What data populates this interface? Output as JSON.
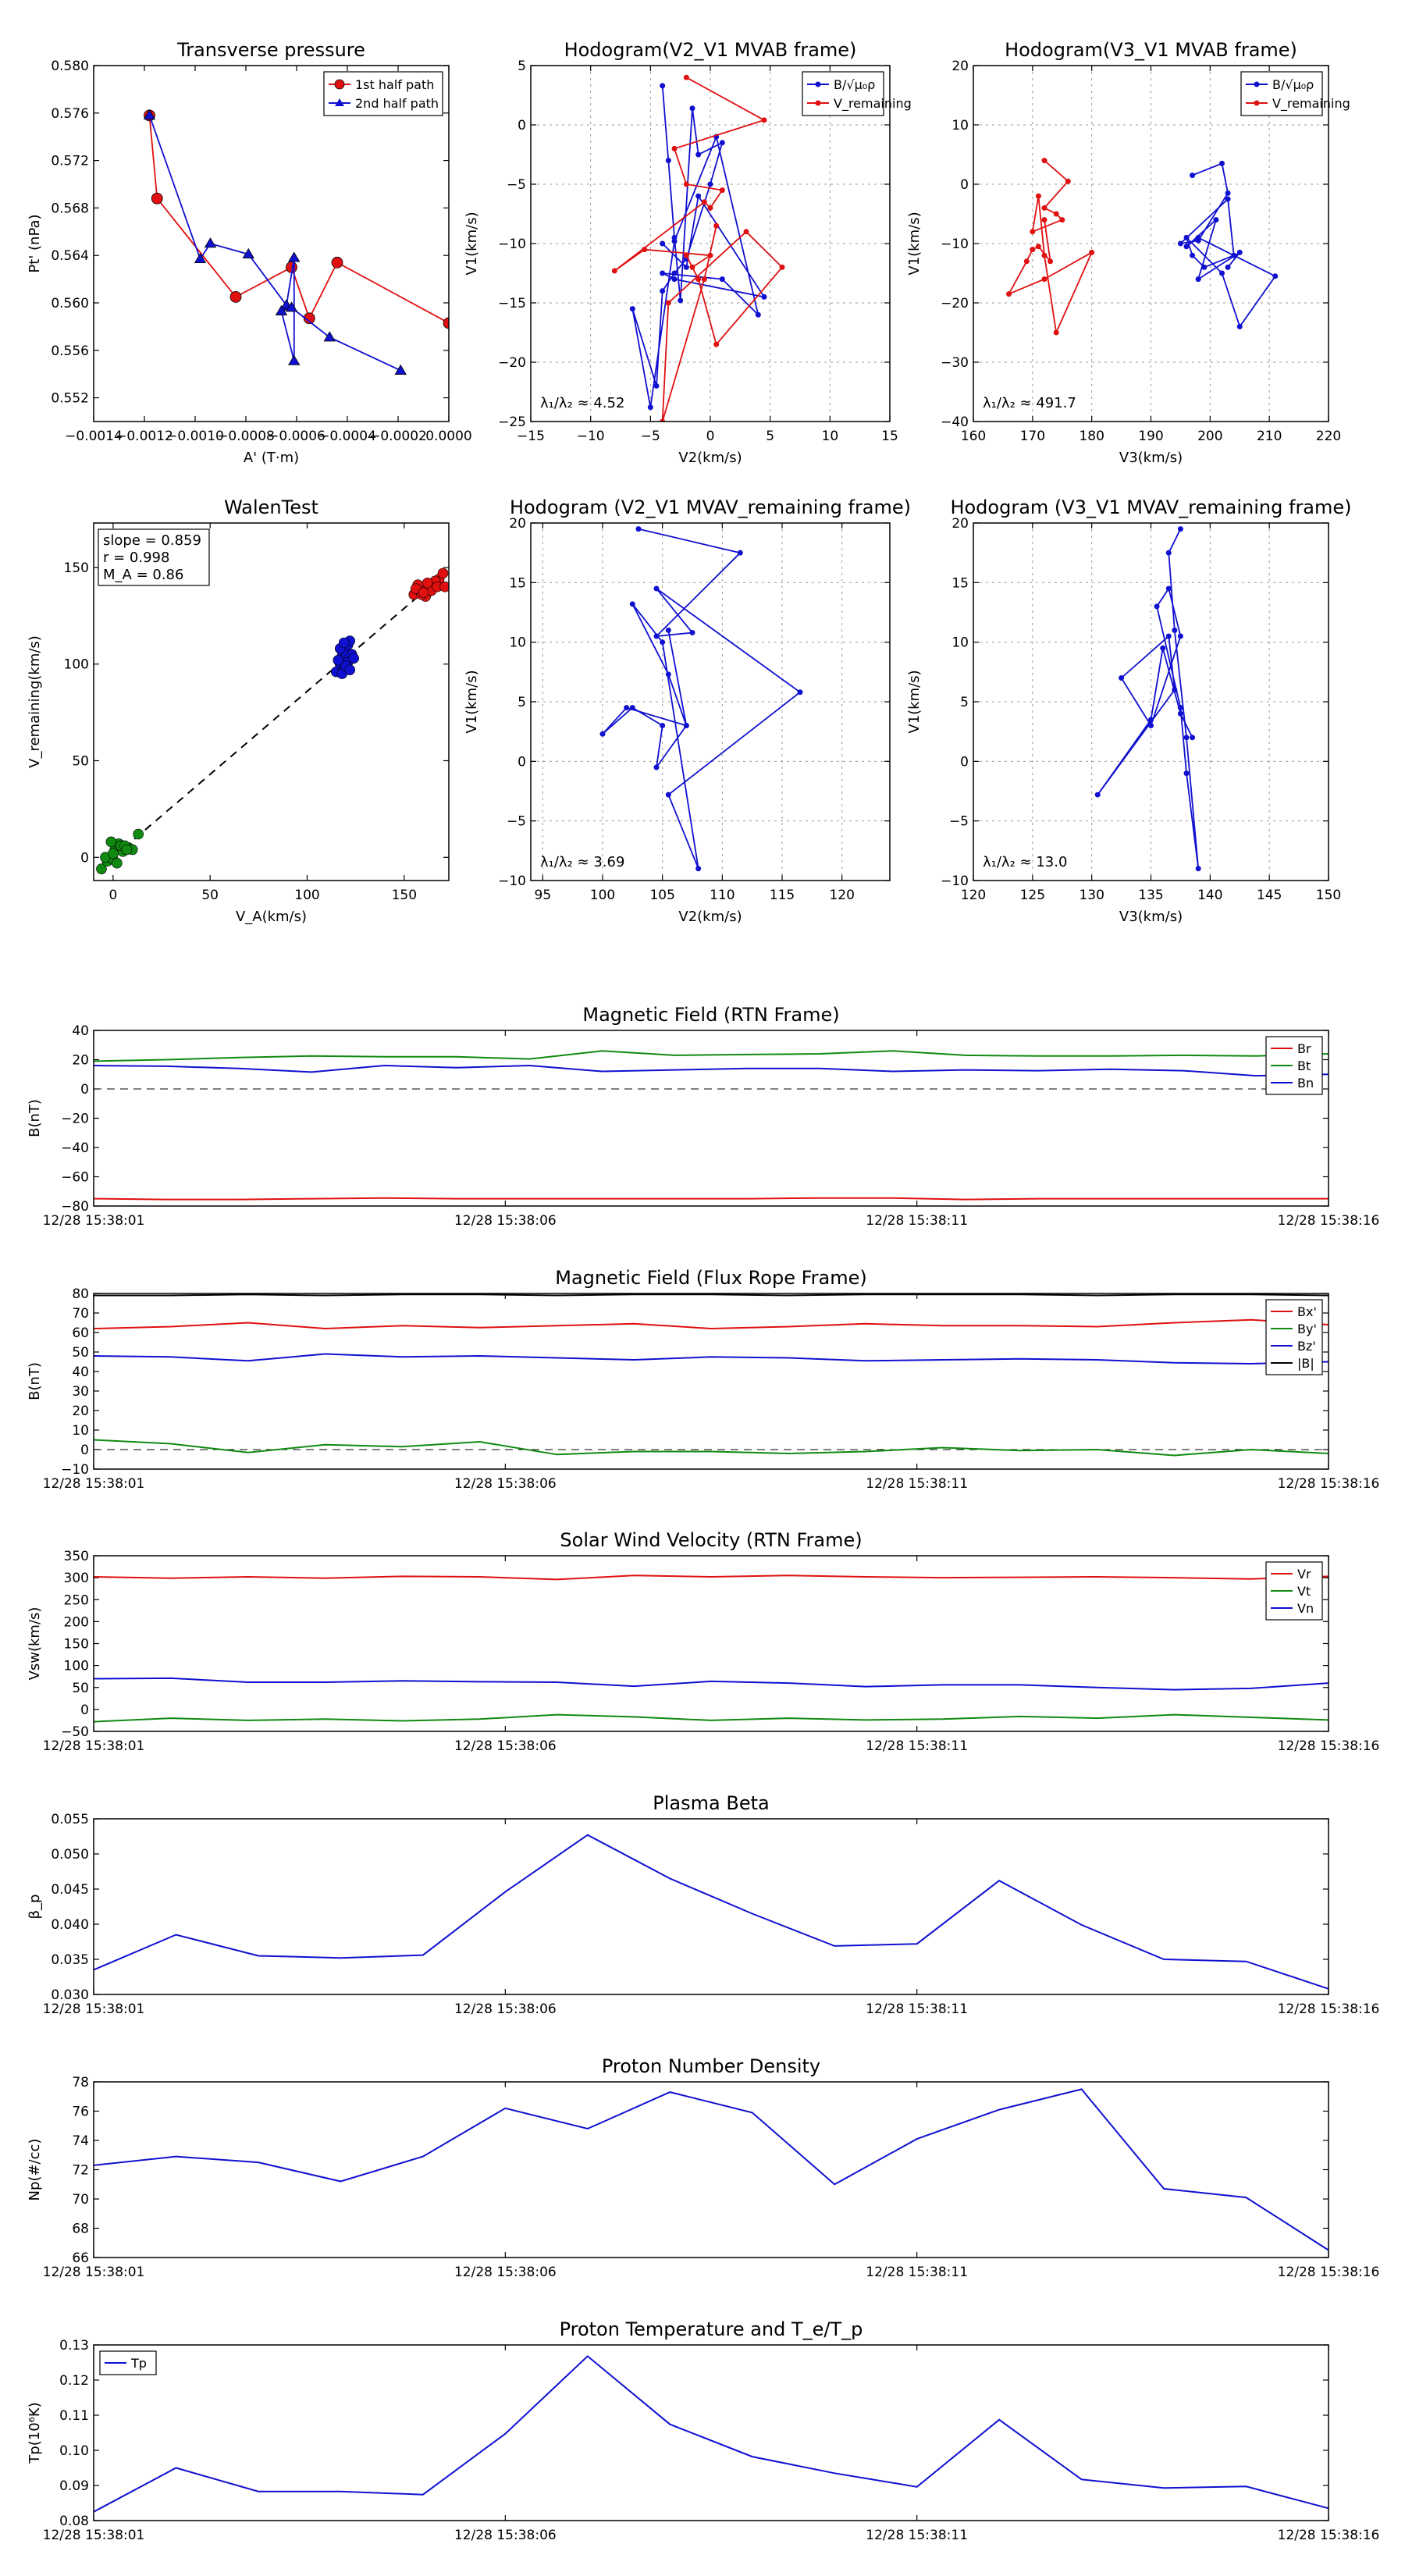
{
  "colors": {
    "red": "#e01010",
    "green": "#108a10",
    "blue": "#1010d0",
    "black": "#000000"
  },
  "time_ticks": [
    "12/28 15:38:01",
    "12/28 15:38:06",
    "12/28 15:38:11",
    "12/28 15:38:16"
  ],
  "chart_data": [
    {
      "id": "transverse",
      "type": "line",
      "title": "Transverse pressure",
      "xlabel": "A' (T·m)",
      "ylabel": "Pt' (nPa)",
      "xlim": [
        -0.0014,
        0.0
      ],
      "ylim": [
        0.55,
        0.58
      ],
      "xticks": [
        -0.0014,
        -0.0012,
        -0.001,
        -0.0008,
        -0.0006,
        -0.0004,
        -0.0002,
        0.0
      ],
      "xtick_labels": [
        "−0.0014",
        "−0.0012",
        "−0.0010",
        "−0.0008",
        "−0.0006",
        "−0.0004",
        "−0.0002",
        "0.0000"
      ],
      "yticks": [
        0.552,
        0.556,
        0.56,
        0.564,
        0.568,
        0.572,
        0.576,
        0.58
      ],
      "ytick_labels": [
        "0.552",
        "0.556",
        "0.560",
        "0.564",
        "0.568",
        "0.572",
        "0.576",
        "0.580"
      ],
      "legend": "top-right",
      "series": [
        {
          "name": "1st half path",
          "color": "red",
          "marker": "circle",
          "x": [
            -0.00118,
            -0.00115,
            -0.00084,
            -0.00062,
            -0.00055,
            -0.00044,
            0.0
          ],
          "y": [
            0.5758,
            0.5688,
            0.5605,
            0.563,
            0.5587,
            0.5634,
            0.5583
          ]
        },
        {
          "name": "2nd half path",
          "color": "blue",
          "marker": "triangle",
          "x": [
            -0.00118,
            -0.00098,
            -0.00094,
            -0.00079,
            -0.00064,
            -0.00061,
            -0.00061,
            -0.00066,
            -0.00062,
            -0.00047,
            -0.00019
          ],
          "y": [
            0.5758,
            0.5637,
            0.565,
            0.5641,
            0.5598,
            0.5638,
            0.5551,
            0.5593,
            0.5596,
            0.5571,
            0.5543
          ]
        }
      ]
    },
    {
      "id": "hodo_v2_mvab",
      "type": "line",
      "title": "Hodogram(V2_V1 MVAB frame)",
      "xlabel": "V2(km/s)",
      "ylabel": "V1(km/s)",
      "xlim": [
        -15,
        15
      ],
      "ylim": [
        -25,
        5
      ],
      "xticks": [
        -15,
        -10,
        -5,
        0,
        5,
        10,
        15
      ],
      "yticks": [
        -25,
        -20,
        -15,
        -10,
        -5,
        0,
        5
      ],
      "grid": true,
      "legend": "top-right",
      "annotation": "λ₁/λ₂ ≈ 4.52",
      "series": [
        {
          "name": "B/√μ₀ρ",
          "color": "blue",
          "x": [
            -4,
            -3.5,
            -3,
            -2.5,
            -1.5,
            -1,
            1,
            0,
            -2,
            -3,
            -4,
            -4.5,
            -6.5,
            -5,
            -3,
            0.5,
            4,
            1,
            -4,
            -3,
            4.5,
            -1,
            -2,
            -4
          ],
          "y": [
            3.3,
            -3,
            -9.5,
            -14.8,
            1.4,
            -2.5,
            -1.5,
            -5,
            -11.3,
            -12.5,
            -14,
            -22,
            -15.5,
            -23.8,
            -9.8,
            -1,
            -16,
            -13,
            -12.5,
            -13,
            -14.5,
            -6,
            -12,
            -10
          ]
        },
        {
          "name": "V_remaining",
          "color": "red",
          "x": [
            -2,
            4.5,
            -3,
            -2,
            1,
            0,
            -0.5,
            -8,
            -5.5,
            0,
            -1.5,
            -2,
            -1,
            0.5,
            6,
            3,
            -3.5,
            -4,
            -0.5,
            0.5
          ],
          "y": [
            4,
            0.4,
            -2,
            -5,
            -5.5,
            -7,
            -6.5,
            -12.3,
            -10.5,
            -11,
            -12,
            -11,
            -13,
            -18.5,
            -12,
            -9,
            -15,
            -25,
            -13,
            -8.5
          ]
        }
      ]
    },
    {
      "id": "hodo_v3_mvab",
      "type": "line",
      "title": "Hodogram(V3_V1 MVAB frame)",
      "xlabel": "V3(km/s)",
      "ylabel": "V1(km/s)",
      "xlim": [
        160,
        220
      ],
      "ylim": [
        -40,
        20
      ],
      "xticks": [
        160,
        170,
        180,
        190,
        200,
        210,
        220
      ],
      "yticks": [
        -40,
        -30,
        -20,
        -10,
        0,
        10,
        20
      ],
      "grid": true,
      "legend": "top-right",
      "annotation": "λ₁/λ₂ ≈ 491.7",
      "series": [
        {
          "name": "B/√μ₀ρ",
          "color": "blue",
          "x": [
            197,
            202,
            203,
            198,
            195,
            203,
            204,
            199,
            197,
            196,
            202,
            205,
            211,
            198,
            196,
            201,
            198,
            205,
            203
          ],
          "y": [
            1.5,
            3.5,
            -1.5,
            -9.5,
            -10,
            -2.5,
            -12,
            -14,
            -12,
            -9,
            -15,
            -24,
            -15.5,
            -9,
            -10.5,
            -6,
            -16,
            -11.5,
            -14
          ]
        },
        {
          "name": "V_remaining",
          "color": "red",
          "x": [
            172,
            176,
            172,
            174,
            175,
            170,
            171,
            172,
            174,
            180,
            172,
            166,
            169,
            170,
            171,
            173,
            172
          ],
          "y": [
            4,
            0.5,
            -4,
            -5,
            -6,
            -8,
            -2,
            -12,
            -25,
            -11.5,
            -16,
            -18.5,
            -13,
            -11,
            -10.5,
            -13,
            -6
          ]
        }
      ]
    },
    {
      "id": "walen",
      "type": "scatter",
      "title": "WalenTest",
      "xlabel": "V_A(km/s)",
      "ylabel": "V_remaining(km/s)",
      "xlim": [
        -10,
        173
      ],
      "ylim": [
        -12,
        173
      ],
      "xticks": [
        0,
        50,
        100,
        150
      ],
      "yticks": [
        0,
        50,
        100,
        150
      ],
      "annotation_lines": [
        "slope = 0.859",
        "r = 0.998",
        "M_A = 0.86"
      ],
      "fit": {
        "slope": 0.859,
        "x": [
          0,
          170
        ]
      },
      "series": [
        {
          "name": "green",
          "color": "green",
          "x": [
            -6,
            -3,
            0,
            1,
            3,
            -1,
            5,
            8,
            10,
            13,
            2,
            4,
            6,
            -4,
            0,
            7
          ],
          "y": [
            -6,
            -2,
            -1,
            4,
            7,
            8,
            3,
            5,
            4,
            12,
            -3,
            6,
            6,
            0,
            2,
            4
          ]
        },
        {
          "name": "blue",
          "color": "blue",
          "x": [
            115,
            117,
            118,
            120,
            121,
            122,
            119,
            116,
            118,
            121,
            123,
            120,
            124,
            117,
            119,
            122
          ],
          "y": [
            96,
            100,
            104,
            106,
            110,
            112,
            97,
            102,
            95,
            101,
            105,
            99,
            103,
            108,
            111,
            97
          ]
        },
        {
          "name": "red",
          "color": "red",
          "x": [
            155,
            158,
            160,
            162,
            163,
            165,
            168,
            170,
            157,
            161,
            164,
            159,
            166,
            156,
            162,
            167,
            171,
            160
          ],
          "y": [
            136,
            138,
            140,
            137,
            139,
            142,
            144,
            147,
            141,
            135,
            138,
            136,
            143,
            139,
            142,
            140,
            140,
            137
          ]
        }
      ]
    },
    {
      "id": "hodo_v2_mvav",
      "type": "line",
      "title": "Hodogram (V2_V1 MVAV_remaining frame)",
      "xlabel": "V2(km/s)",
      "ylabel": "V1(km/s)",
      "xlim": [
        94,
        124
      ],
      "ylim": [
        -10,
        20
      ],
      "xticks": [
        95,
        100,
        105,
        110,
        115,
        120
      ],
      "yticks": [
        -10,
        -5,
        0,
        5,
        10,
        15,
        20
      ],
      "grid": true,
      "annotation": "λ₁/λ₂ ≈ 3.69",
      "series": [
        {
          "name": "V",
          "color": "blue",
          "x": [
            103,
            111.5,
            104.5,
            107.5,
            104.5,
            116.5,
            105.5,
            108,
            105,
            102.5,
            105.5,
            107,
            102,
            100,
            102.5,
            105,
            104.5,
            107,
            105.5
          ],
          "y": [
            19.5,
            17.5,
            10.5,
            10.8,
            14.5,
            5.8,
            -2.8,
            -9,
            10,
            13.2,
            7.3,
            3,
            4.5,
            2.3,
            4.5,
            3,
            -0.5,
            3,
            11
          ]
        }
      ]
    },
    {
      "id": "hodo_v3_mvav",
      "type": "line",
      "title": "Hodogram (V3_V1 MVAV_remaining frame)",
      "xlabel": "V3(km/s)",
      "ylabel": "V1(km/s)",
      "xlim": [
        120,
        150
      ],
      "ylim": [
        -10,
        20
      ],
      "xticks": [
        120,
        125,
        130,
        135,
        140,
        145,
        150
      ],
      "yticks": [
        -10,
        -5,
        0,
        5,
        10,
        15,
        20
      ],
      "grid": true,
      "annotation": "λ₁/λ₂ ≈ 13.0",
      "series": [
        {
          "name": "V",
          "color": "blue",
          "x": [
            137.5,
            136.5,
            137,
            138,
            139,
            138,
            137.5,
            135.5,
            136.5,
            137.5,
            135,
            132.5,
            136.5,
            137,
            130.5,
            135,
            136,
            137.5,
            138.5
          ],
          "y": [
            19.5,
            17.5,
            11,
            2,
            -9,
            -1,
            4.5,
            13,
            14.5,
            10.5,
            3,
            7,
            10.5,
            6,
            -2.8,
            3.5,
            9.5,
            4,
            2
          ]
        }
      ]
    },
    {
      "id": "bfield_rtn",
      "type": "line",
      "title": "Magnetic Field (RTN Frame)",
      "ylabel": "B(nT)",
      "ylim": [
        -80,
        40
      ],
      "yticks": [
        -80,
        -60,
        -40,
        -20,
        0,
        20,
        40
      ],
      "zero_line": true,
      "legend": "top-right",
      "series": [
        {
          "name": "Br",
          "color": "red",
          "values": [
            -75,
            -75.5,
            -75.5,
            -75,
            -74.5,
            -75,
            -75,
            -75,
            -75,
            -75,
            -74.5,
            -74.5,
            -75.5,
            -75,
            -75,
            -75,
            -75,
            -75
          ]
        },
        {
          "name": "Bt",
          "color": "green",
          "values": [
            19,
            20,
            21.5,
            22.5,
            22,
            22,
            20.5,
            26,
            23,
            23.5,
            24,
            26,
            23,
            22.5,
            22.5,
            23,
            22.5,
            24
          ]
        },
        {
          "name": "Bn",
          "color": "blue",
          "values": [
            16,
            15.5,
            14,
            11.5,
            16,
            14.5,
            16,
            12,
            13,
            14,
            14,
            12,
            13,
            12.5,
            13.5,
            12.5,
            9,
            10
          ]
        }
      ]
    },
    {
      "id": "bfield_fr",
      "type": "line",
      "title": "Magnetic Field (Flux Rope Frame)",
      "ylabel": "B(nT)",
      "ylim": [
        -10,
        80
      ],
      "yticks": [
        -10,
        0,
        10,
        20,
        30,
        40,
        50,
        60,
        70,
        80
      ],
      "zero_line": true,
      "legend": "top-right",
      "series": [
        {
          "name": "Bx'",
          "color": "red",
          "values": [
            62,
            63,
            65,
            62,
            63.5,
            62.5,
            63.5,
            64.5,
            62,
            63,
            64.5,
            63.5,
            63.5,
            63,
            65,
            66.5,
            64
          ]
        },
        {
          "name": "By'",
          "color": "green",
          "values": [
            5,
            3,
            -1.5,
            2.5,
            1.5,
            4,
            -2.5,
            -1,
            -1,
            -2,
            -1,
            1,
            -0.5,
            0,
            -3,
            0,
            -2
          ]
        },
        {
          "name": "Bz'",
          "color": "blue",
          "values": [
            48,
            47.5,
            45.5,
            49,
            47.5,
            48,
            47,
            46,
            47.5,
            47,
            45.5,
            46,
            46.5,
            46,
            44.5,
            44,
            45
          ]
        },
        {
          "name": "|B|",
          "color": "black",
          "values": [
            79,
            79,
            79.5,
            79,
            79.5,
            79.5,
            79,
            79.5,
            79.5,
            79,
            79.5,
            79.5,
            79.5,
            79,
            79.5,
            79.5,
            79
          ]
        }
      ]
    },
    {
      "id": "swv",
      "type": "line",
      "title": "Solar Wind Velocity (RTN Frame)",
      "ylabel": "Vsw(km/s)",
      "ylim": [
        -50,
        350
      ],
      "yticks": [
        -50,
        0,
        50,
        100,
        150,
        200,
        250,
        300,
        350
      ],
      "legend": "top-right",
      "series": [
        {
          "name": "Vr",
          "color": "red",
          "values": [
            302,
            299,
            302,
            299,
            303,
            302,
            296,
            305,
            302,
            305,
            302,
            300,
            301,
            302,
            300,
            297,
            303
          ]
        },
        {
          "name": "Vt",
          "color": "green",
          "values": [
            -28,
            -20,
            -25,
            -22,
            -26,
            -22,
            -12,
            -17,
            -25,
            -20,
            -24,
            -22,
            -16,
            -20,
            -12,
            -18,
            -24
          ]
        },
        {
          "name": "Vn",
          "color": "blue",
          "values": [
            70,
            71,
            62,
            62,
            65,
            63,
            62,
            53,
            64,
            60,
            52,
            56,
            56,
            50,
            45,
            48,
            60
          ]
        }
      ]
    },
    {
      "id": "beta",
      "type": "line",
      "title": "Plasma Beta",
      "ylabel": "β_p",
      "ylim": [
        0.03,
        0.055
      ],
      "yticks": [
        0.03,
        0.035,
        0.04,
        0.045,
        0.05,
        0.055
      ],
      "ytick_labels": [
        "0.030",
        "0.035",
        "0.040",
        "0.045",
        "0.050",
        "0.055"
      ],
      "series": [
        {
          "name": "beta",
          "color": "blue",
          "values": [
            0.0335,
            0.0385,
            0.0355,
            0.0352,
            0.0356,
            0.0446,
            0.0527,
            0.0465,
            0.0415,
            0.0369,
            0.0372,
            0.0462,
            0.0399,
            0.035,
            0.0347,
            0.0308
          ]
        }
      ]
    },
    {
      "id": "density",
      "type": "line",
      "title": "Proton Number Density",
      "ylabel": "Np(#/cc)",
      "ylim": [
        66,
        78
      ],
      "yticks": [
        66,
        68,
        70,
        72,
        74,
        76,
        78
      ],
      "series": [
        {
          "name": "Np",
          "color": "blue",
          "values": [
            72.3,
            72.9,
            72.5,
            71.2,
            72.9,
            76.2,
            74.8,
            77.3,
            75.9,
            71.0,
            74.1,
            76.1,
            77.5,
            70.7,
            70.1,
            66.5
          ]
        }
      ]
    },
    {
      "id": "temperature",
      "type": "line",
      "title": "Proton Temperature and T_e/T_p",
      "ylabel": "Tp(10⁶K)",
      "ylim": [
        0.08,
        0.13
      ],
      "yticks": [
        0.08,
        0.09,
        0.1,
        0.11,
        0.12,
        0.13
      ],
      "ytick_labels": [
        "0.08",
        "0.09",
        "0.10",
        "0.11",
        "0.12",
        "0.13"
      ],
      "legend": "top-left",
      "series": [
        {
          "name": "Tp",
          "color": "blue",
          "values": [
            0.0825,
            0.095,
            0.0883,
            0.0883,
            0.0874,
            0.1047,
            0.1268,
            0.1074,
            0.0982,
            0.0935,
            0.0896,
            0.1087,
            0.0917,
            0.0893,
            0.0897,
            0.0835
          ]
        }
      ]
    }
  ]
}
